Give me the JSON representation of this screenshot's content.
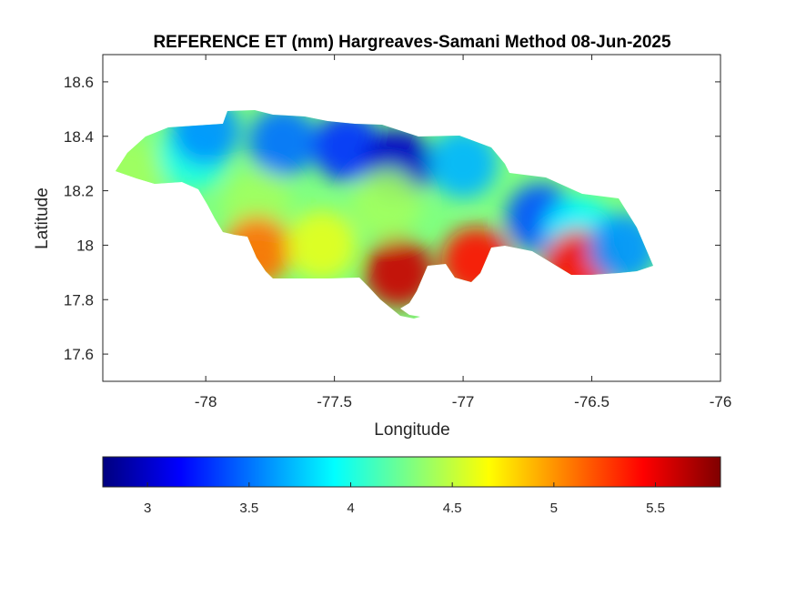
{
  "figure": {
    "title": "REFERENCE ET (mm) Hargreaves-Samani Method  08-Jun-2025",
    "xlabel": "Longitude",
    "ylabel": "Latitude"
  },
  "map": {
    "type": "heatmap",
    "region": "Jamaica",
    "colormap": "jet",
    "xlim": [
      -78.4,
      -76.0
    ],
    "ylim": [
      17.5,
      18.7
    ],
    "xticks": [
      "-78",
      "-77.5",
      "-77",
      "-76.5",
      "-76"
    ],
    "yticks": [
      "17.6",
      "17.8",
      "18",
      "18.2",
      "18.4",
      "18.6"
    ],
    "grid": false
  },
  "colorbar": {
    "orientation": "horizontal",
    "placement": "bottom",
    "range": [
      2.78,
      5.82
    ],
    "ticks": [
      "3",
      "3.5",
      "4",
      "4.5",
      "5",
      "5.5"
    ]
  },
  "chart_data": {
    "type": "heatmap",
    "title": "REFERENCE ET (mm) Hargreaves-Samani Method  08-Jun-2025",
    "xlabel": "Longitude",
    "ylabel": "Latitude",
    "xlim": [
      -78.4,
      -76.0
    ],
    "ylim": [
      17.5,
      18.7
    ],
    "colorbar_range": [
      2.78,
      5.82
    ],
    "regions": [
      {
        "lon": -78.3,
        "lat": 18.27,
        "value": 4.4
      },
      {
        "lon": -78.05,
        "lat": 18.33,
        "value": 4.0
      },
      {
        "lon": -78.0,
        "lat": 18.42,
        "value": 3.6
      },
      {
        "lon": -77.7,
        "lat": 18.38,
        "value": 3.5
      },
      {
        "lon": -77.45,
        "lat": 18.36,
        "value": 3.3
      },
      {
        "lon": -77.25,
        "lat": 18.3,
        "value": 3.0
      },
      {
        "lon": -77.0,
        "lat": 18.3,
        "value": 3.7
      },
      {
        "lon": -77.8,
        "lat": 18.15,
        "value": 4.4
      },
      {
        "lon": -77.3,
        "lat": 18.15,
        "value": 4.4
      },
      {
        "lon": -77.8,
        "lat": 17.98,
        "value": 5.1
      },
      {
        "lon": -77.55,
        "lat": 18.0,
        "value": 4.6
      },
      {
        "lon": -77.25,
        "lat": 17.9,
        "value": 5.6
      },
      {
        "lon": -76.95,
        "lat": 17.94,
        "value": 5.4
      },
      {
        "lon": -76.7,
        "lat": 18.1,
        "value": 3.4
      },
      {
        "lon": -76.55,
        "lat": 18.05,
        "value": 3.9
      },
      {
        "lon": -76.55,
        "lat": 17.93,
        "value": 5.4
      },
      {
        "lon": -76.38,
        "lat": 17.99,
        "value": 3.6
      }
    ]
  }
}
